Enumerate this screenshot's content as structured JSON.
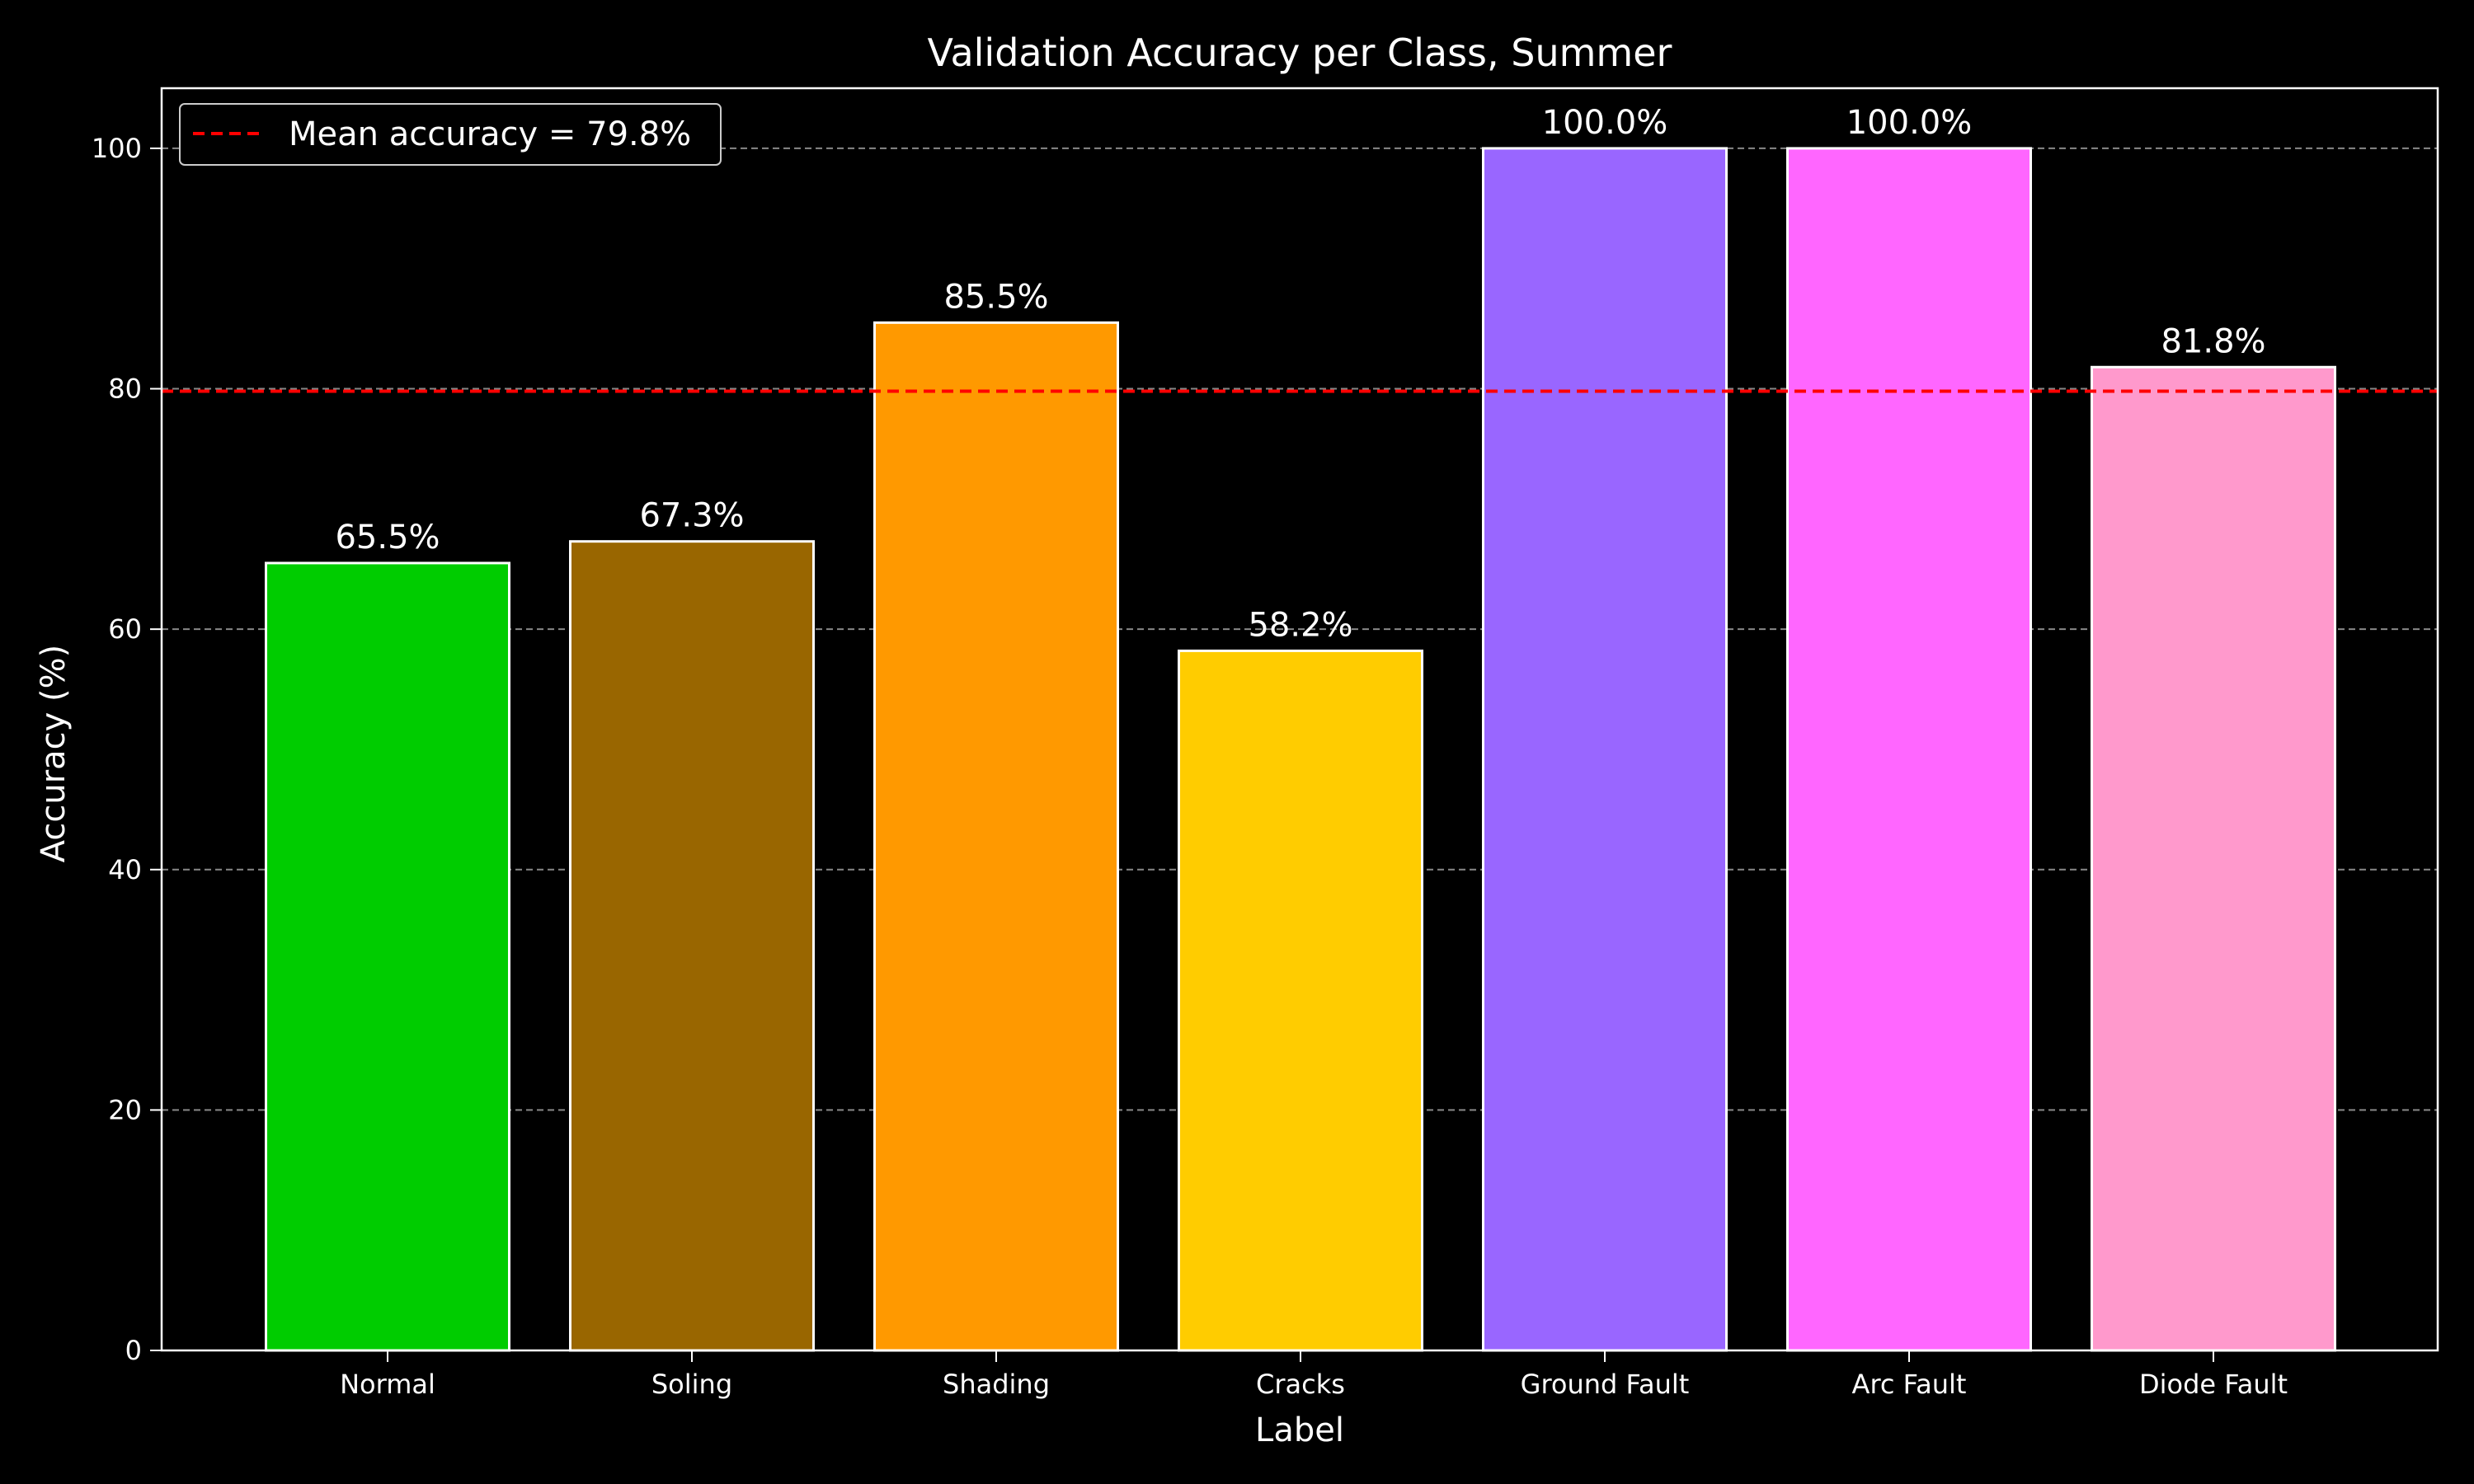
{
  "chart_data": {
    "type": "bar",
    "title": "Validation Accuracy per Class, Summer",
    "xlabel": "Label",
    "ylabel": "Accuracy (%)",
    "categories": [
      "Normal",
      "Soling",
      "Shading",
      "Cracks",
      "Ground Fault",
      "Arc Fault",
      "Diode Fault"
    ],
    "values": [
      65.5,
      67.3,
      85.5,
      58.2,
      100.0,
      100.0,
      81.8
    ],
    "value_labels": [
      "65.5%",
      "67.3%",
      "85.5%",
      "58.2%",
      "100.0%",
      "100.0%",
      "81.8%"
    ],
    "colors": [
      "#00cc00",
      "#996600",
      "#ff9900",
      "#ffcc00",
      "#9966ff",
      "#ff66ff",
      "#ff99cc"
    ],
    "ylim": [
      0,
      105
    ],
    "yticks": [
      0,
      20,
      40,
      60,
      80,
      100
    ],
    "grid": true,
    "grid_axis": "y",
    "mean_line": {
      "value": 79.8,
      "label": "Mean accuracy = 79.8%",
      "color": "#ff0000",
      "style": "dashed"
    },
    "legend": {
      "placement": "top-left",
      "entries": [
        "Mean accuracy = 79.8%"
      ]
    },
    "background": "#000000",
    "foreground": "#ffffff"
  }
}
